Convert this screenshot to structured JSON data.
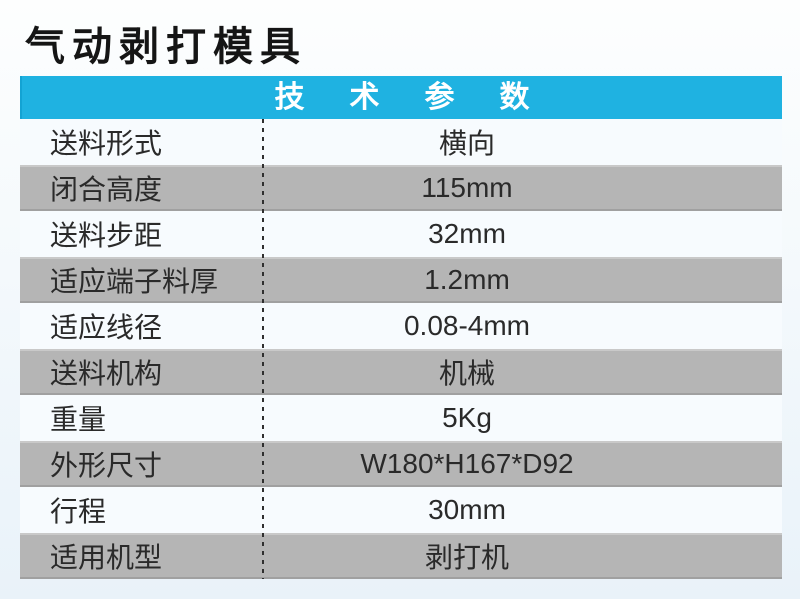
{
  "title": "气动剥打模具",
  "table": {
    "header": "技术参数",
    "rows": [
      {
        "label": "送料形式",
        "value": "横向"
      },
      {
        "label": "闭合高度",
        "value": "115mm"
      },
      {
        "label": "送料步距",
        "value": "32mm"
      },
      {
        "label": "适应端子料厚",
        "value": "1.2mm"
      },
      {
        "label": "适应线径",
        "value": "0.08-4mm"
      },
      {
        "label": "送料机构",
        "value": "机械"
      },
      {
        "label": "重量",
        "value": "5Kg"
      },
      {
        "label": "外形尺寸",
        "value": "W180*H167*D92"
      },
      {
        "label": "行程",
        "value": "30mm"
      },
      {
        "label": "适用机型",
        "value": "剥打机"
      }
    ]
  },
  "colors": {
    "header_bg": "#1fb2e1",
    "header_text": "#ffffff",
    "row_light_bg": "#f7fbfe",
    "row_gray_bg": "#b5b5b5",
    "page_bg": "#edf4fa",
    "text": "#2a2a2a"
  }
}
